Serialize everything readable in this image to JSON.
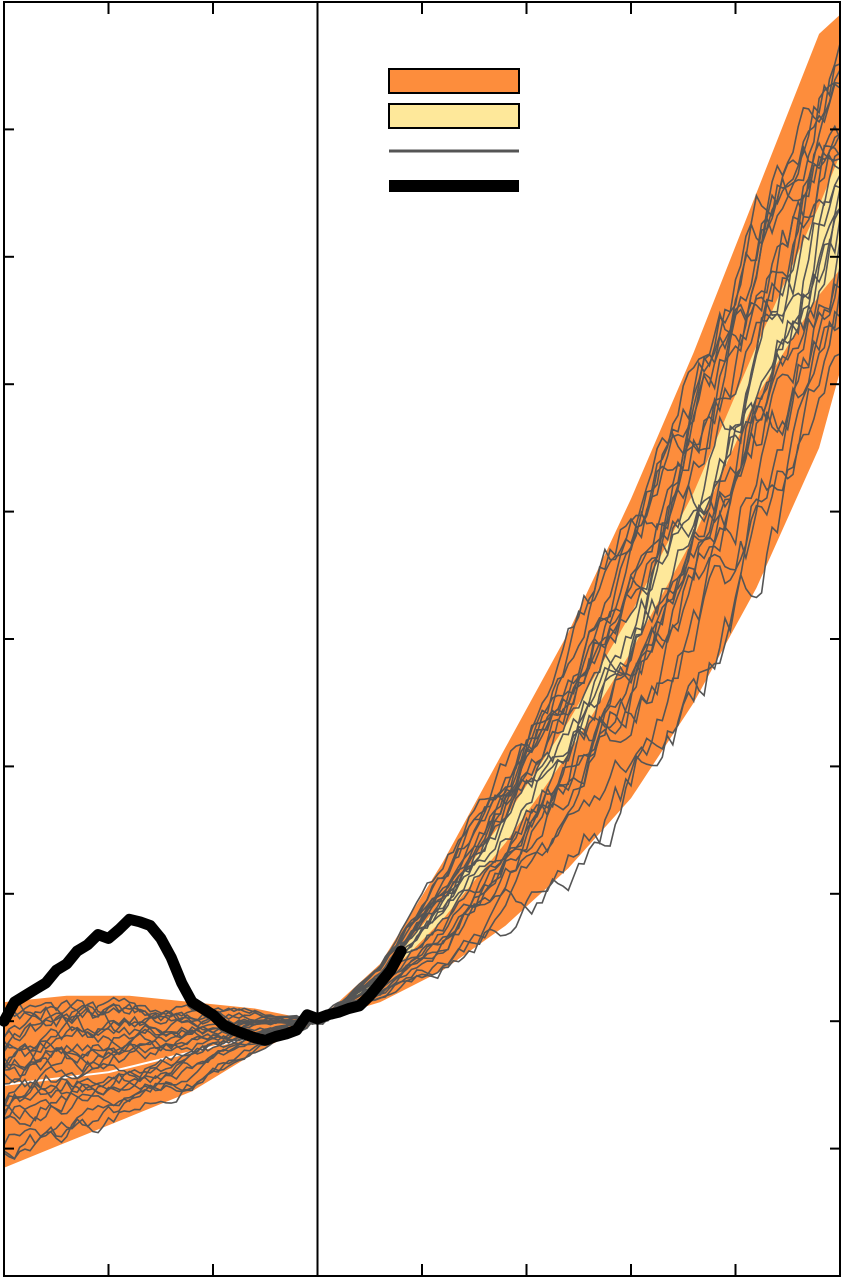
{
  "colors": {
    "outer_band": "#fd8d3c",
    "inner_band": "#fee89a",
    "trajectory": "#555555",
    "observed": "#000000",
    "frame": "#000000",
    "background": "#ffffff"
  },
  "chart_data": {
    "type": "line",
    "title": "",
    "xlabel": "",
    "ylabel": "",
    "xlim": [
      0,
      8
    ],
    "ylim": [
      0,
      10
    ],
    "x_ticks": [
      1,
      2,
      3,
      4,
      5,
      6,
      7
    ],
    "y_ticks": [
      1,
      2,
      3,
      4,
      5,
      6,
      7,
      8,
      9
    ],
    "tick_labels_visible": false,
    "grid": false,
    "vertical_reference_line_x": 3,
    "legend": {
      "placement": "top-center",
      "entries": [
        {
          "kind": "outer_band",
          "label": ""
        },
        {
          "kind": "inner_band",
          "label": ""
        },
        {
          "kind": "trajectory",
          "label": ""
        },
        {
          "kind": "observed",
          "label": ""
        }
      ]
    },
    "bands": {
      "outer": {
        "left_segment": {
          "x": [
            0,
            0.6,
            1.2,
            1.8,
            2.4,
            3.0
          ],
          "lower": [
            0.85,
            1.05,
            1.25,
            1.45,
            1.75,
            2.0
          ],
          "upper": [
            2.15,
            2.2,
            2.2,
            2.15,
            2.1,
            2.0
          ]
        },
        "right_segment": {
          "x": [
            3.0,
            3.6,
            4.2,
            4.8,
            5.4,
            6.0,
            6.6,
            7.2,
            7.8,
            8.0
          ],
          "lower": [
            2.0,
            2.15,
            2.4,
            2.75,
            3.2,
            3.75,
            4.5,
            5.4,
            6.5,
            7.1
          ],
          "upper": [
            2.0,
            2.45,
            3.25,
            4.15,
            5.05,
            6.1,
            7.25,
            8.5,
            9.75,
            9.9
          ]
        }
      },
      "inner": {
        "x": [
          3.0,
          3.6,
          4.2,
          4.8,
          5.4,
          6.0,
          6.6,
          7.2,
          7.8,
          8.0
        ],
        "lower": [
          2.0,
          2.3,
          2.8,
          3.4,
          4.1,
          4.9,
          5.8,
          6.9,
          7.7,
          7.9
        ],
        "upper": [
          2.0,
          2.35,
          2.95,
          3.6,
          4.35,
          5.2,
          6.15,
          7.3,
          8.4,
          8.8
        ]
      },
      "median_left": {
        "x": [
          0,
          1,
          2,
          3
        ],
        "y": [
          1.5,
          1.6,
          1.8,
          2.0
        ]
      }
    },
    "trajectories_count": 25,
    "observed": {
      "x": [
        0.0,
        0.1,
        0.2,
        0.3,
        0.4,
        0.5,
        0.6,
        0.7,
        0.8,
        0.9,
        1.0,
        1.1,
        1.2,
        1.3,
        1.4,
        1.5,
        1.6,
        1.7,
        1.8,
        1.9,
        2.0,
        2.1,
        2.2,
        2.3,
        2.4,
        2.5,
        2.6,
        2.7,
        2.8,
        2.9,
        3.0,
        3.1,
        3.2,
        3.3,
        3.4,
        3.5,
        3.6,
        3.7,
        3.8
      ],
      "y": [
        2.0,
        2.15,
        2.2,
        2.25,
        2.3,
        2.4,
        2.45,
        2.55,
        2.6,
        2.68,
        2.65,
        2.72,
        2.8,
        2.78,
        2.75,
        2.65,
        2.5,
        2.3,
        2.15,
        2.1,
        2.05,
        1.97,
        1.93,
        1.9,
        1.87,
        1.85,
        1.88,
        1.9,
        1.93,
        2.05,
        2.02,
        2.05,
        2.07,
        2.1,
        2.12,
        2.2,
        2.3,
        2.4,
        2.55
      ]
    }
  }
}
